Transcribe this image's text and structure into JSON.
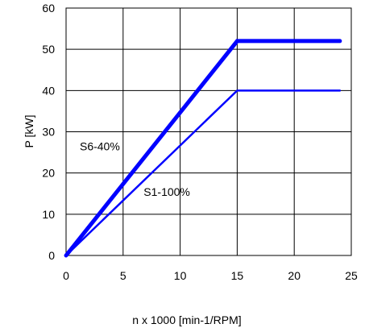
{
  "chart_data": {
    "type": "line",
    "xlabel": "n x 1000 [min-1/RPM]",
    "ylabel": "P [kW]",
    "xlim": [
      0,
      25
    ],
    "ylim": [
      0,
      60
    ],
    "xticks": [
      0,
      5,
      10,
      15,
      20,
      25
    ],
    "yticks": [
      0,
      10,
      20,
      30,
      40,
      50,
      60
    ],
    "grid": true,
    "series": [
      {
        "name": "S6-40%",
        "color": "#0000ff",
        "weight": "thick",
        "x": [
          0,
          15,
          24
        ],
        "y": [
          0,
          52,
          52
        ]
      },
      {
        "name": "S1-100%",
        "color": "#0000ff",
        "weight": "thin",
        "x": [
          0,
          15,
          24
        ],
        "y": [
          0,
          40,
          40
        ]
      }
    ],
    "annotations": [
      {
        "text": "S6-40%",
        "x": 1.2,
        "y": 25.5
      },
      {
        "text": "S1-100%",
        "x": 6.8,
        "y": 14.5
      }
    ]
  }
}
